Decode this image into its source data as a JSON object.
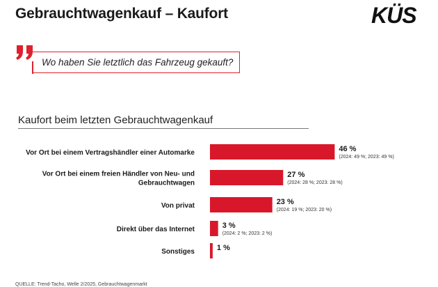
{
  "header": {
    "title": "Gebrauchtwagenkauf – Kaufort",
    "logo_text": "KÜS"
  },
  "question": {
    "text": "Wo haben Sie letztlich das Fahrzeug gekauft?",
    "icon": "quote-icon"
  },
  "colors": {
    "accent": "#e0202f",
    "bar": "#d8182a",
    "text": "#1a1a1a"
  },
  "chart_data": {
    "type": "bar",
    "orientation": "horizontal",
    "title": "Kaufort beim letzten Gebrauchtwagenkauf",
    "categories": [
      [
        "Vor Ort bei einem Vertragshändler einer Automarke"
      ],
      [
        "Vor Ort bei einem freien Händler von Neu- und",
        "Gebrauchtwagen"
      ],
      [
        "Von privat"
      ],
      [
        "Direkt über das Internet"
      ],
      [
        "Sonstiges"
      ]
    ],
    "values": [
      46,
      27,
      23,
      3,
      1
    ],
    "value_labels": [
      "46 %",
      "27 %",
      "23 %",
      "3 %",
      "1 %"
    ],
    "notes": [
      "(2024: 49 %; 2023: 49 %)",
      "(2024: 28 %; 2023: 28 %)",
      "(2024: 19 %; 2023: 20 %)",
      "(2024: 2 %; 2023: 2 %)",
      ""
    ],
    "xlim": [
      0,
      100
    ],
    "grid": false,
    "legend": "none"
  },
  "footer": {
    "source": "QUELLE: Trend-Tacho, Welle 2/2025, Gebrauchtwagenmarkt"
  }
}
